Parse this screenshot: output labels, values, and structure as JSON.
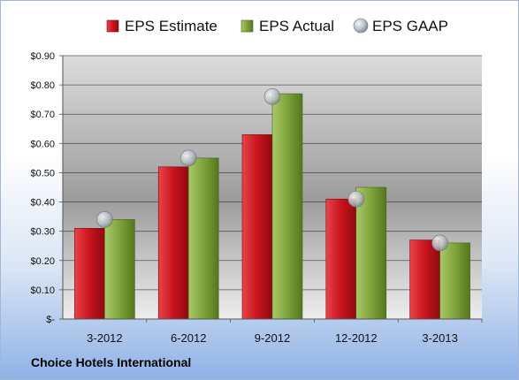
{
  "company": "Choice Hotels International",
  "chart_data": {
    "type": "bar",
    "categories": [
      "3-2012",
      "6-2012",
      "9-2012",
      "12-2012",
      "3-2013"
    ],
    "series": [
      {
        "name": "EPS Estimate",
        "type": "bar",
        "color": "#c8141c",
        "values": [
          0.31,
          0.52,
          0.63,
          0.41,
          0.27
        ]
      },
      {
        "name": "EPS Actual",
        "type": "bar",
        "color": "#7ea33a",
        "values": [
          0.34,
          0.55,
          0.77,
          0.45,
          0.26
        ]
      },
      {
        "name": "EPS GAAP",
        "type": "marker",
        "color": "#b9c0c8",
        "values": [
          0.34,
          0.55,
          0.76,
          0.41,
          0.26
        ]
      }
    ],
    "yticks": [
      "$-",
      "$0.10",
      "$0.20",
      "$0.30",
      "$0.40",
      "$0.50",
      "$0.60",
      "$0.70",
      "$0.80",
      "$0.90"
    ],
    "ylim": [
      0,
      0.9
    ],
    "grid": true,
    "legend": "top"
  }
}
